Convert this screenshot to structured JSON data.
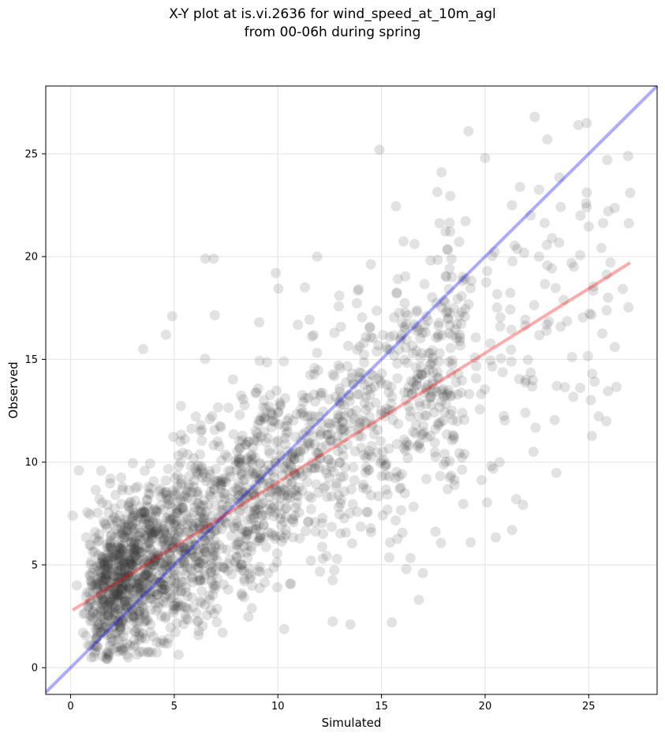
{
  "chart_data": {
    "type": "scatter",
    "title_line1": "X-Y plot at is.vi.2636 for wind_speed_at_10m_agl",
    "title_line2": "from 00-06h during spring",
    "xlabel": "Simulated",
    "ylabel": "Observed",
    "xlim": [
      -1.2,
      28.3
    ],
    "ylim": [
      -1.3,
      28.3
    ],
    "x_ticks": [
      0,
      5,
      10,
      15,
      20,
      25
    ],
    "y_ticks": [
      0,
      5,
      10,
      15,
      20,
      25
    ],
    "grid": true,
    "point_color": "#333333",
    "point_opacity": 0.14,
    "point_count_approx": 2200,
    "sample_points": [
      [
        0.1,
        7.4
      ],
      [
        0.4,
        9.6
      ],
      [
        0.3,
        4.0
      ],
      [
        0.6,
        1.7
      ],
      [
        1.2,
        6.3
      ],
      [
        3.5,
        15.5
      ],
      [
        4.6,
        16.2
      ],
      [
        4.9,
        17.1
      ],
      [
        6.5,
        19.9
      ],
      [
        6.9,
        19.9
      ],
      [
        9.1,
        16.8
      ],
      [
        9.9,
        19.2
      ],
      [
        11.3,
        18.5
      ],
      [
        11.9,
        20.0
      ],
      [
        14.9,
        25.2
      ],
      [
        15.5,
        2.2
      ],
      [
        13.5,
        2.1
      ],
      [
        16.2,
        4.8
      ],
      [
        16.8,
        3.3
      ],
      [
        17.0,
        4.6
      ],
      [
        19.3,
        6.1
      ],
      [
        21.3,
        6.7
      ],
      [
        21.5,
        8.2
      ],
      [
        20.7,
        10.0
      ],
      [
        19.0,
        10.4
      ],
      [
        17.9,
        24.1
      ],
      [
        19.2,
        26.1
      ],
      [
        20.0,
        24.8
      ],
      [
        22.4,
        26.8
      ],
      [
        23.0,
        25.7
      ],
      [
        24.5,
        26.4
      ],
      [
        24.9,
        26.5
      ],
      [
        26.9,
        24.9
      ],
      [
        27.0,
        23.1
      ],
      [
        25.9,
        24.7
      ],
      [
        24.9,
        22.4
      ],
      [
        24.6,
        22.0
      ],
      [
        22.6,
        20.0
      ],
      [
        21.3,
        22.5
      ],
      [
        22.2,
        22.0
      ]
    ],
    "lines": [
      {
        "name": "1:1 line",
        "color": "#0000ff",
        "opacity": 0.33,
        "x": [
          -1.2,
          28.3
        ],
        "y": [
          -1.2,
          28.3
        ]
      },
      {
        "name": "fit line",
        "color": "#ff0000",
        "opacity": 0.33,
        "x": [
          0.1,
          27.0
        ],
        "y": [
          2.8,
          19.7
        ]
      }
    ]
  }
}
